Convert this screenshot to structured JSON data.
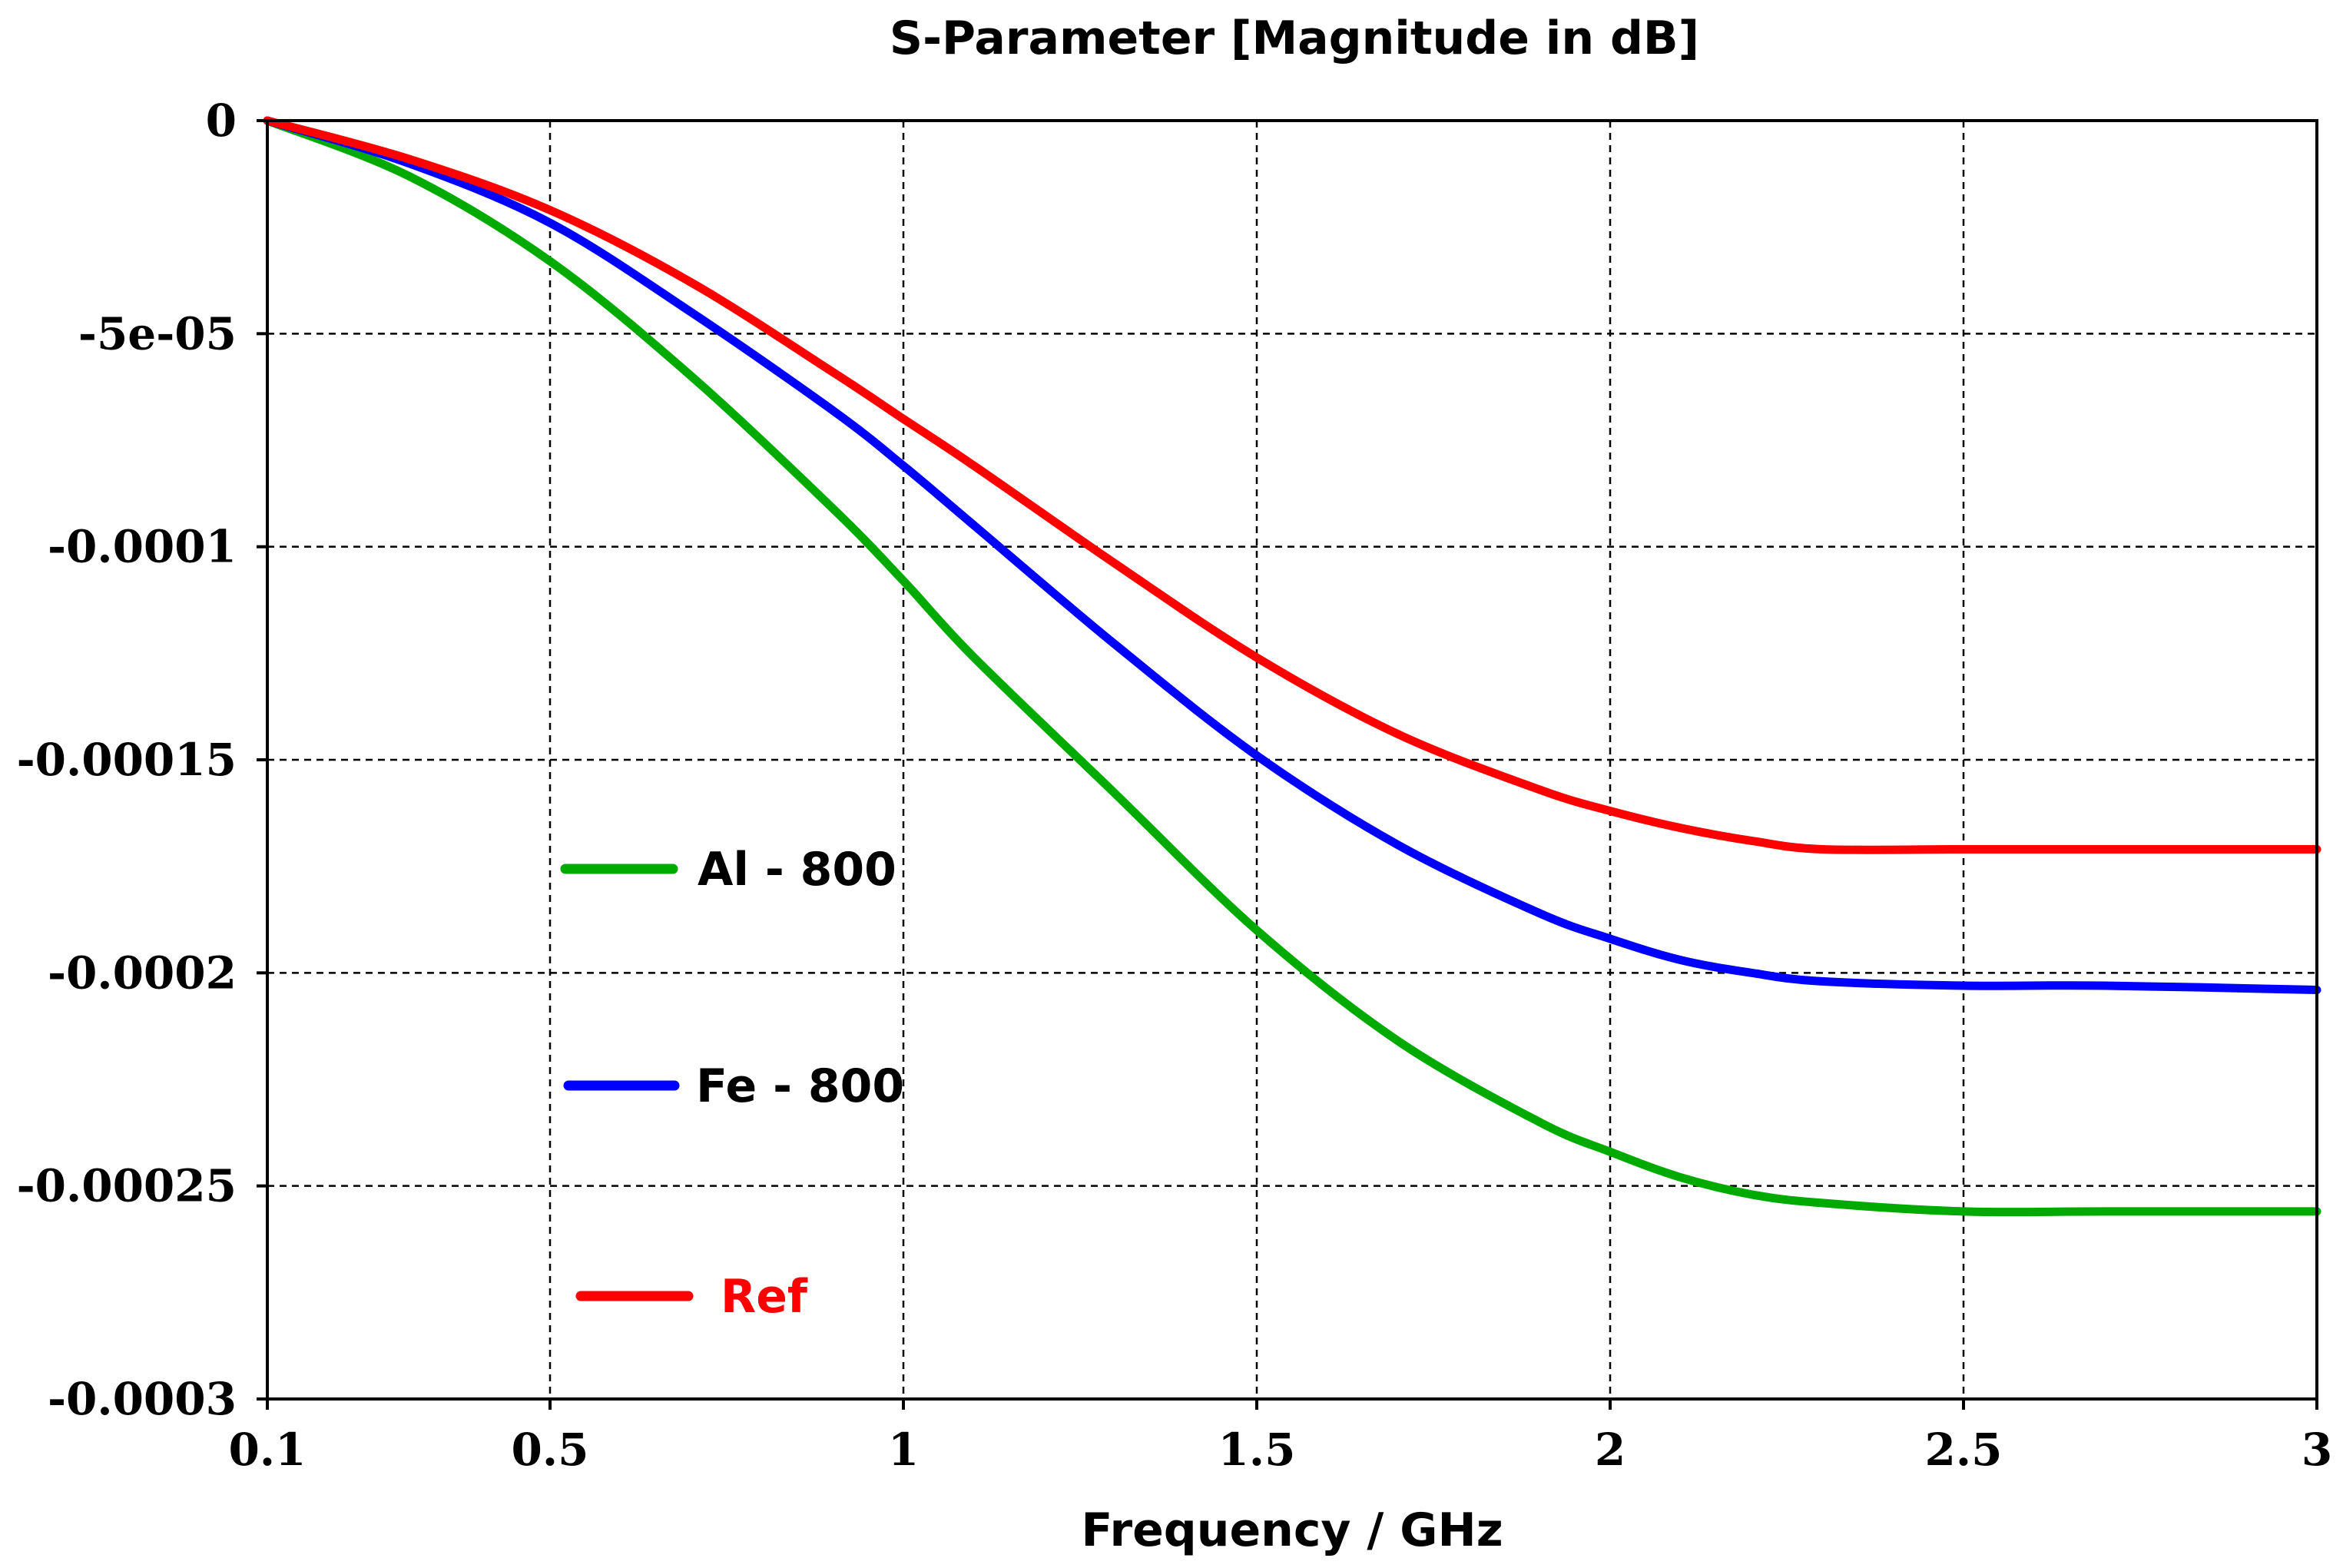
{
  "chart_data": {
    "type": "line",
    "title": "S-Parameter [Magnitude in dB]",
    "xlabel": "Frequency / GHz",
    "ylabel": "",
    "xlim": [
      0.1,
      3
    ],
    "ylim": [
      -0.0003,
      0
    ],
    "x_ticks": [
      0.1,
      0.5,
      1,
      1.5,
      2,
      2.5,
      3
    ],
    "x_tick_labels": [
      "0.1",
      "0.5",
      "1",
      "1.5",
      "2",
      "2.5",
      "3"
    ],
    "y_ticks": [
      0,
      -5e-05,
      -0.0001,
      -0.00015,
      -0.0002,
      -0.00025,
      -0.0003
    ],
    "y_tick_labels": [
      "0",
      "-5e-05",
      "-0.0001",
      "-0.00015",
      "-0.0002",
      "-0.00025",
      "-0.0003"
    ],
    "grid": true,
    "legend_position": "left-middle",
    "series": [
      {
        "name": "Al - 800",
        "color": "#00aa00",
        "x": [
          0.1,
          0.3,
          0.5,
          0.7,
          0.9,
          1.0,
          1.1,
          1.3,
          1.5,
          1.7,
          1.9,
          2.0,
          2.1,
          2.2,
          2.3,
          2.5,
          2.7,
          3.0
        ],
        "y": [
          0,
          -1.3e-05,
          -3.3e-05,
          -6e-05,
          -9.1e-05,
          -0.000108,
          -0.000126,
          -0.000158,
          -0.00019,
          -0.000216,
          -0.000235,
          -0.000242,
          -0.000248,
          -0.000252,
          -0.000254,
          -0.000256,
          -0.000256,
          -0.000256
        ]
      },
      {
        "name": "Fe - 800",
        "color": "#0000ff",
        "x": [
          0.1,
          0.3,
          0.5,
          0.7,
          0.9,
          1.0,
          1.1,
          1.3,
          1.5,
          1.7,
          1.9,
          2.0,
          2.1,
          2.2,
          2.3,
          2.5,
          2.7,
          3.0
        ],
        "y": [
          0,
          -1e-05,
          -2.4e-05,
          -4.5e-05,
          -6.8e-05,
          -8.1e-05,
          -9.5e-05,
          -0.000123,
          -0.000149,
          -0.00017,
          -0.000186,
          -0.000192,
          -0.000197,
          -0.0002,
          -0.000202,
          -0.000203,
          -0.000203,
          -0.000204
        ]
      },
      {
        "name": "Ref",
        "color": "#ff0000",
        "x": [
          0.1,
          0.3,
          0.5,
          0.7,
          0.9,
          1.0,
          1.1,
          1.3,
          1.5,
          1.7,
          1.9,
          2.0,
          2.1,
          2.2,
          2.3,
          2.5,
          2.7,
          3.0
        ],
        "y": [
          0,
          -9e-06,
          -2.1e-05,
          -3.8e-05,
          -5.9e-05,
          -7e-05,
          -8.1e-05,
          -0.000104,
          -0.000126,
          -0.000144,
          -0.000157,
          -0.000162,
          -0.000166,
          -0.000169,
          -0.000171,
          -0.000171,
          -0.000171,
          -0.000171
        ]
      }
    ]
  }
}
